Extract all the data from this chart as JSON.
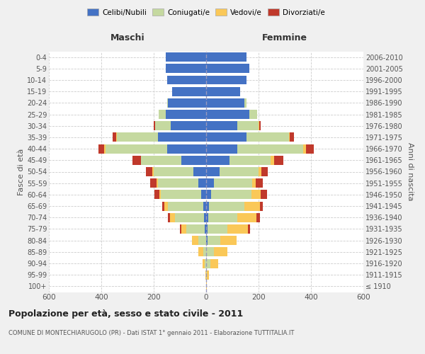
{
  "age_groups": [
    "100+",
    "95-99",
    "90-94",
    "85-89",
    "80-84",
    "75-79",
    "70-74",
    "65-69",
    "60-64",
    "55-59",
    "50-54",
    "45-49",
    "40-44",
    "35-39",
    "30-34",
    "25-29",
    "20-24",
    "15-19",
    "10-14",
    "5-9",
    "0-4"
  ],
  "birth_years": [
    "≤ 1910",
    "1911-1915",
    "1916-1920",
    "1921-1925",
    "1926-1930",
    "1931-1935",
    "1936-1940",
    "1941-1945",
    "1946-1950",
    "1951-1955",
    "1956-1960",
    "1961-1965",
    "1966-1970",
    "1971-1975",
    "1976-1980",
    "1981-1985",
    "1986-1990",
    "1991-1995",
    "1996-2000",
    "2001-2005",
    "2006-2010"
  ],
  "males": {
    "celibi": [
      0,
      0,
      0,
      0,
      0,
      5,
      8,
      10,
      18,
      30,
      50,
      95,
      150,
      185,
      135,
      155,
      145,
      130,
      150,
      155,
      155
    ],
    "coniugati": [
      0,
      0,
      5,
      10,
      30,
      70,
      110,
      135,
      155,
      155,
      150,
      155,
      235,
      155,
      60,
      25,
      5,
      0,
      0,
      0,
      0
    ],
    "vedovi": [
      0,
      2,
      8,
      20,
      25,
      20,
      20,
      15,
      5,
      3,
      5,
      0,
      5,
      3,
      0,
      0,
      0,
      0,
      0,
      0,
      0
    ],
    "divorziati": [
      0,
      0,
      0,
      0,
      0,
      5,
      8,
      8,
      20,
      25,
      25,
      30,
      20,
      15,
      5,
      0,
      0,
      0,
      0,
      0,
      0
    ]
  },
  "females": {
    "nubili": [
      0,
      0,
      0,
      0,
      5,
      5,
      8,
      10,
      18,
      30,
      50,
      90,
      120,
      155,
      120,
      165,
      145,
      130,
      155,
      165,
      155
    ],
    "coniugate": [
      0,
      3,
      15,
      30,
      50,
      75,
      110,
      135,
      155,
      145,
      150,
      155,
      250,
      160,
      80,
      30,
      10,
      0,
      0,
      0,
      0
    ],
    "vedove": [
      2,
      8,
      30,
      50,
      60,
      80,
      75,
      60,
      35,
      15,
      10,
      15,
      10,
      5,
      2,
      0,
      0,
      0,
      0,
      0,
      0
    ],
    "divorziate": [
      0,
      0,
      0,
      2,
      2,
      8,
      12,
      12,
      25,
      25,
      25,
      35,
      30,
      15,
      5,
      0,
      0,
      0,
      0,
      0,
      0
    ]
  },
  "colors": {
    "celibi": "#4472C4",
    "coniugati": "#C5D9A0",
    "vedovi": "#FAC858",
    "divorziati": "#C0392B"
  },
  "legend_labels": [
    "Celibi/Nubili",
    "Coniugati/e",
    "Vedovi/e",
    "Divorziati/e"
  ],
  "title": "Popolazione per età, sesso e stato civile - 2011",
  "subtitle": "COMUNE DI MONTECHIARUGOLO (PR) - Dati ISTAT 1° gennaio 2011 - Elaborazione TUTTITALIA.IT",
  "xlabel_maschi": "Maschi",
  "xlabel_femmine": "Femmine",
  "ylabel_left": "Fasce di età",
  "ylabel_right": "Anni di nascita",
  "xlim": 600,
  "bg_color": "#f0f0f0",
  "plot_bg": "#ffffff",
  "grid_color": "#cccccc"
}
